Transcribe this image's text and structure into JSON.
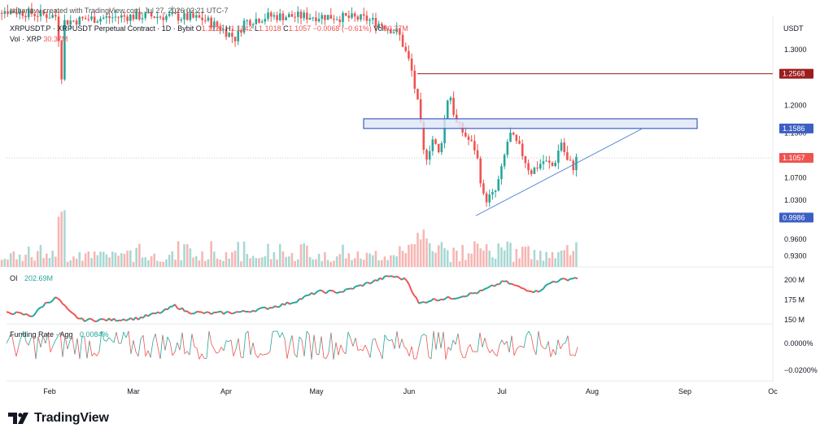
{
  "header": {
    "credit": "sahanavv created with TradingView.com, Jul 27, 2026 02:21 UTC-7",
    "symbol_line": "XRPUSDT.P · XRPUSDT Perpetual Contract · 1D · Bybit",
    "ohlc": {
      "o_label": "O",
      "o": "1.1125",
      "h_label": "H",
      "h": "1.1142",
      "l_label": "L",
      "l": "1.1018",
      "c_label": "C",
      "c": "1.1057",
      "chg": "−0.0068 (−0.61%)"
    },
    "vol_label": "Vol",
    "vol_value": "30.37M",
    "vol_line_label": "Vol · XRP",
    "vol_line_value": "30.37M",
    "currency": "USDT"
  },
  "colors": {
    "up": "#26a69a",
    "down": "#ef5350",
    "up_vol": "#a8d8d3",
    "down_vol": "#f6b6b3",
    "resistance": "#9c1d1d",
    "zone": "#3c5fc4",
    "trend": "#5b8bd6",
    "last": "#ef5350"
  },
  "chart_data": [
    {
      "type": "candlestick",
      "title": "XRPUSDT Perpetual Contract · 1D · Bybit",
      "x_tick_labels": [
        "Feb",
        "Mar",
        "Apr",
        "May",
        "Jun",
        "Jul",
        "Aug",
        "Sep",
        "Oc"
      ],
      "ylim": [
        0.91,
        1.36
      ],
      "y_tick_labels": [
        "1.3000",
        "1.2000",
        "1.1500",
        "1.0700",
        "1.0300",
        "0.9600",
        "0.9300"
      ],
      "y_ticks": [
        1.3,
        1.2,
        1.15,
        1.07,
        1.03,
        0.96,
        0.93
      ],
      "price_labels": [
        {
          "text": "1.2568",
          "value": 1.2568,
          "kind": "resistance"
        },
        {
          "text": "1.1586",
          "value": 1.1586,
          "kind": "zone"
        },
        {
          "text": "1.1057",
          "value": 1.1057,
          "kind": "last"
        },
        {
          "text": "0.9986",
          "value": 0.9986,
          "kind": "zone"
        }
      ],
      "resistance_level": 1.2568,
      "supply_zone": [
        1.1586,
        1.176
      ],
      "trendline": [
        {
          "date": "Jun 22",
          "y": 1.002
        },
        {
          "date": "Aug 25",
          "y": 1.1586
        }
      ],
      "last_price": 1.1057
    },
    {
      "type": "area",
      "title": "OI",
      "current_label": "202.69M",
      "y_tick_labels": [
        "200 M",
        "175 M",
        "150 M"
      ],
      "y_ticks": [
        200,
        175,
        150
      ],
      "ylim": [
        145,
        210
      ]
    },
    {
      "type": "line",
      "title": "Funding Rate · Agg",
      "current_label": "0.0084%",
      "y_tick_labels": [
        "0.0000%",
        "−0.0200%"
      ],
      "y_ticks": [
        0.0,
        -0.02
      ],
      "ylim": [
        -0.028,
        0.012
      ]
    }
  ],
  "brand": {
    "name": "TradingView"
  }
}
